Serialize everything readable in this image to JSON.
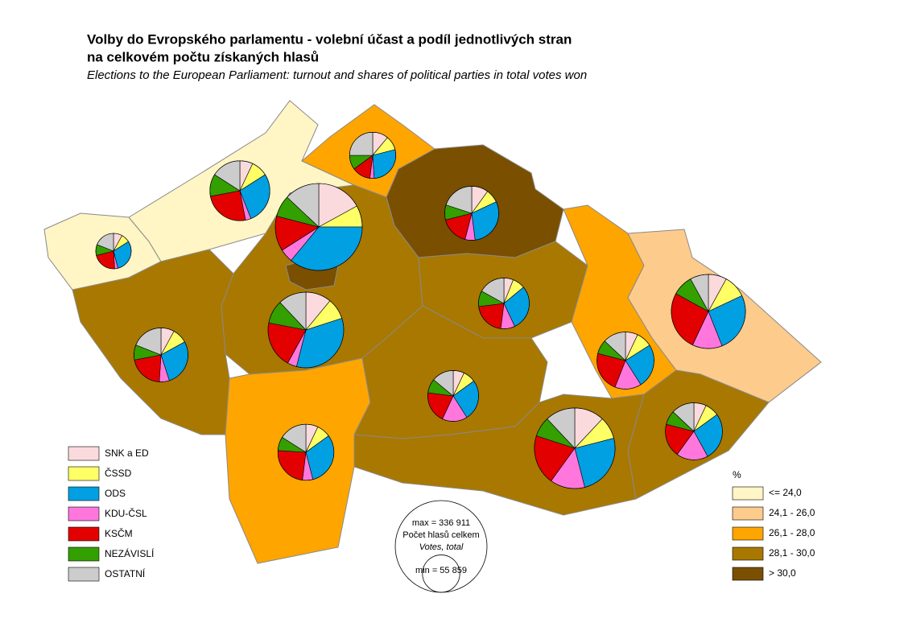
{
  "title": "Volby do Evropského parlamentu - volební účast a podíl jednotlivých stran",
  "title_line2": "na celkovém počtu získaných hlasů",
  "subtitle": "Elections to the European Parliament: turnout and shares of political parties in total votes won",
  "parties": [
    {
      "name": "SNK a ED",
      "color": "#fadadd"
    },
    {
      "name": "ČSSD",
      "color": "#ffff66"
    },
    {
      "name": "ODS",
      "color": "#00a0e3"
    },
    {
      "name": "KDU-ČSL",
      "color": "#ff77dd"
    },
    {
      "name": "KSČM",
      "color": "#e30000"
    },
    {
      "name": "NEZÁVISLÍ",
      "color": "#33a000"
    },
    {
      "name": "OSTATNÍ",
      "color": "#cccccc"
    }
  ],
  "turnout_legend": {
    "title": "%",
    "classes": [
      {
        "label": "<= 24,0",
        "color": "#fff5c5"
      },
      {
        "label": "24,1 - 26,0",
        "color": "#fdcb8b"
      },
      {
        "label": "26,1 - 28,0",
        "color": "#ffa500"
      },
      {
        "label": "28,1 - 30,0",
        "color": "#a87800"
      },
      {
        "label": "> 30,0",
        "color": "#7a4f00"
      }
    ]
  },
  "size_legend": {
    "max": {
      "value": 336911,
      "label": "max = 336 911"
    },
    "min": {
      "value": 55859,
      "label": "min = 55 859"
    },
    "caption": "Počet hlasů celkem",
    "caption_en": "Votes, total"
  },
  "regions": [
    {
      "turnout_class": 0,
      "votes": 55859,
      "shares": [
        8,
        8,
        30,
        3,
        22,
        10,
        19
      ]
    },
    {
      "turnout_class": 0,
      "votes": 160000,
      "shares": [
        7,
        9,
        28,
        3,
        25,
        12,
        16
      ]
    },
    {
      "turnout_class": 2,
      "votes": 95000,
      "shares": [
        11,
        10,
        28,
        3,
        13,
        10,
        25
      ]
    },
    {
      "turnout_class": 4,
      "votes": 336911,
      "shares": [
        17,
        8,
        36,
        5,
        13,
        8,
        13
      ]
    },
    {
      "turnout_class": 3,
      "votes": 255000,
      "shares": [
        11,
        9,
        34,
        4,
        20,
        10,
        12
      ]
    },
    {
      "turnout_class": 4,
      "votes": 130000,
      "shares": [
        10,
        8,
        30,
        6,
        17,
        9,
        20
      ]
    },
    {
      "turnout_class": 3,
      "votes": 130000,
      "shares": [
        8,
        9,
        28,
        6,
        21,
        9,
        19
      ]
    },
    {
      "turnout_class": 3,
      "votes": 115000,
      "shares": [
        6,
        8,
        29,
        9,
        21,
        10,
        17
      ]
    },
    {
      "turnout_class": 2,
      "votes": 140000,
      "shares": [
        7,
        8,
        31,
        6,
        24,
        8,
        16
      ]
    },
    {
      "turnout_class": 3,
      "votes": 115000,
      "shares": [
        7,
        8,
        26,
        16,
        20,
        9,
        14
      ]
    },
    {
      "turnout_class": 2,
      "votes": 145000,
      "shares": [
        7,
        9,
        25,
        15,
        23,
        8,
        13
      ]
    },
    {
      "turnout_class": 1,
      "votes": 245000,
      "shares": [
        8,
        10,
        26,
        13,
        26,
        9,
        8
      ]
    },
    {
      "turnout_class": 3,
      "votes": 290000,
      "shares": [
        12,
        9,
        25,
        14,
        20,
        8,
        12
      ]
    },
    {
      "turnout_class": 3,
      "votes": 145000,
      "shares": [
        7,
        8,
        27,
        18,
        19,
        8,
        13
      ]
    }
  ]
}
